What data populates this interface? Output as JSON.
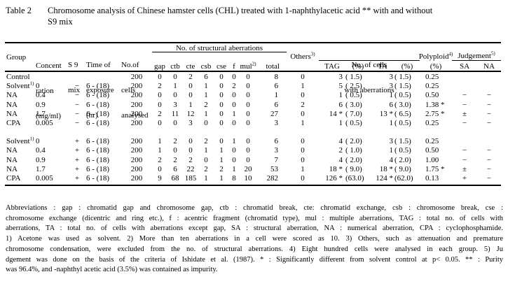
{
  "title": {
    "label": "Table 2",
    "line1": "Chromosome analysis of Chinese hamster cells (CHL) treated with 1-naphthylacetic acid ** with and without",
    "line2": "S9 mix"
  },
  "table": {
    "header": {
      "group": "Group",
      "conc_lines": [
        "Concent",
        "ration",
        "(mg/ml)"
      ],
      "s9_lines": [
        "S 9",
        "mix"
      ],
      "time_lines": [
        "Time of",
        "exposure",
        "(hr)"
      ],
      "cells_lines": [
        "No.of",
        "cells",
        "analysed"
      ],
      "struct_span": "No. of structural aberrations",
      "struct_cols": [
        "gap",
        "ctb",
        "cte",
        "csb",
        "cse",
        "f",
        {
          "text": "mul",
          "sup": "2)"
        },
        "total"
      ],
      "others": {
        "text": "Others",
        "sup": "3)"
      },
      "aberr_span_line1": "No. of cells",
      "aberr_span_line2": "with aberrations",
      "aberr_cols": [
        "TAG",
        "(%)",
        "TA",
        "(%)"
      ],
      "polyploid": {
        "text": "Polyploid",
        "sup": "4)",
        "unit": "(%)"
      },
      "judgement": {
        "text": "Judgement",
        "sup": "5)"
      },
      "judgement_cols": [
        "SA",
        "NA"
      ]
    },
    "groups": [
      {
        "rows": [
          [
            "Control",
            "",
            "",
            "",
            "200",
            "0",
            "0",
            "2",
            "6",
            "0",
            "0",
            "0",
            "8",
            "0",
            "3",
            "( 1.5)",
            "3",
            "( 1.5)",
            "0.25",
            "",
            ""
          ],
          [
            "Solvent^1)",
            "0",
            "−",
            "6 - (18)",
            "200",
            "2",
            "1",
            "0",
            "1",
            "0",
            "2",
            "0",
            "6",
            "1",
            "5",
            "( 2.5)",
            "3",
            "( 1.5)",
            "0.25",
            "",
            ""
          ],
          [
            "NA",
            "0.4",
            "−",
            "6 - (18)",
            "200",
            "0",
            "0",
            "0",
            "1",
            "0",
            "0",
            "0",
            "1",
            "0",
            "1",
            "( 0.5)",
            "1",
            "( 0.5)",
            "0.50",
            "−",
            "−"
          ],
          [
            "NA",
            "0.9",
            "−",
            "6 - (18)",
            "200",
            "0",
            "3",
            "1",
            "2",
            "0",
            "0",
            "0",
            "6",
            "2",
            "6",
            "( 3.0)",
            "6",
            "( 3.0)",
            "1.38 *",
            "−",
            "−"
          ],
          [
            "NA",
            "1.7",
            "−",
            "6 - (18)",
            "200",
            "2",
            "11",
            "12",
            "1",
            "0",
            "1",
            "0",
            "27",
            "0",
            "14 *",
            "( 7.0)",
            "13 *",
            "( 6.5)",
            "2.75 *",
            "±",
            "−"
          ],
          [
            "CPA",
            "0.005",
            "−",
            "6 - (18)",
            "200",
            "0",
            "0",
            "3",
            "0",
            "0",
            "0",
            "0",
            "3",
            "1",
            "1",
            "( 0.5)",
            "1",
            "( 0.5)",
            "0.25",
            "−",
            "−"
          ]
        ]
      },
      {
        "rows": [
          [
            "Solvent^1)",
            "0",
            "+",
            "6 - (18)",
            "200",
            "1",
            "2",
            "0",
            "2",
            "0",
            "1",
            "0",
            "6",
            "0",
            "4",
            "( 2.0)",
            "3",
            "( 1.5)",
            "0.25",
            "",
            ""
          ],
          [
            "NA",
            "0.4",
            "+",
            "6 - (18)",
            "200",
            "1",
            "0",
            "0",
            "1",
            "1",
            "0",
            "0",
            "3",
            "0",
            "2",
            "( 1.0)",
            "1",
            "( 0.5)",
            "0.50",
            "−",
            "−"
          ],
          [
            "NA",
            "0.9",
            "+",
            "6 - (18)",
            "200",
            "2",
            "2",
            "2",
            "0",
            "1",
            "0",
            "0",
            "7",
            "0",
            "4",
            "( 2.0)",
            "4",
            "( 2.0)",
            "1.00",
            "−",
            "−"
          ],
          [
            "NA",
            "1.7",
            "+",
            "6 - (18)",
            "200",
            "0",
            "6",
            "22",
            "2",
            "2",
            "1",
            "20",
            "53",
            "1",
            "18 *",
            "( 9.0)",
            "18 *",
            "( 9.0)",
            "1.75 *",
            "±",
            "−"
          ],
          [
            "CPA",
            "0.005",
            "+",
            "6 - (18)",
            "200",
            "9",
            "68",
            "185",
            "1",
            "1",
            "8",
            "10",
            "282",
            "0",
            "126 *",
            "(63.0)",
            "124 *",
            "(62.0)",
            "0.13",
            "+",
            "−"
          ]
        ]
      }
    ]
  },
  "footnotes": {
    "lines": [
      "Abbreviations : gap : chromatid gap and chromosome gap,  ctb : chromatid break,  cte:  chromatid exchange,  csb : chromosome break,  cse :",
      "chromosome exchange (dicentric and ring etc.),  f : acentric fragment (chromatid type),  mul : multiple aberrations,  TAG : total no. of cells with",
      "aberrations, TA : total no. of cells with aberrations except gap, SA : structural aberration, NA : numerical aberration, CPA : cyclophosphamide.",
      "1) Acetone was used as solvent.   2) More than ten aberrations in a cell were scored as 10.   3) Others, such as attenuation and premature",
      "chromosome condensation, were excluded from the no. of structural aberrations. 4) Eight hundred cells were analysed in each group.   5) Ju",
      "dgement was done on the basis of the criteria of Ishidate et al. (1987). * : Significantly different from solvent control at p< 0.05.    ** : Purity",
      "was 96.4%, and -naphthyl acetic acid (3.5%) was contained as impurity."
    ]
  }
}
